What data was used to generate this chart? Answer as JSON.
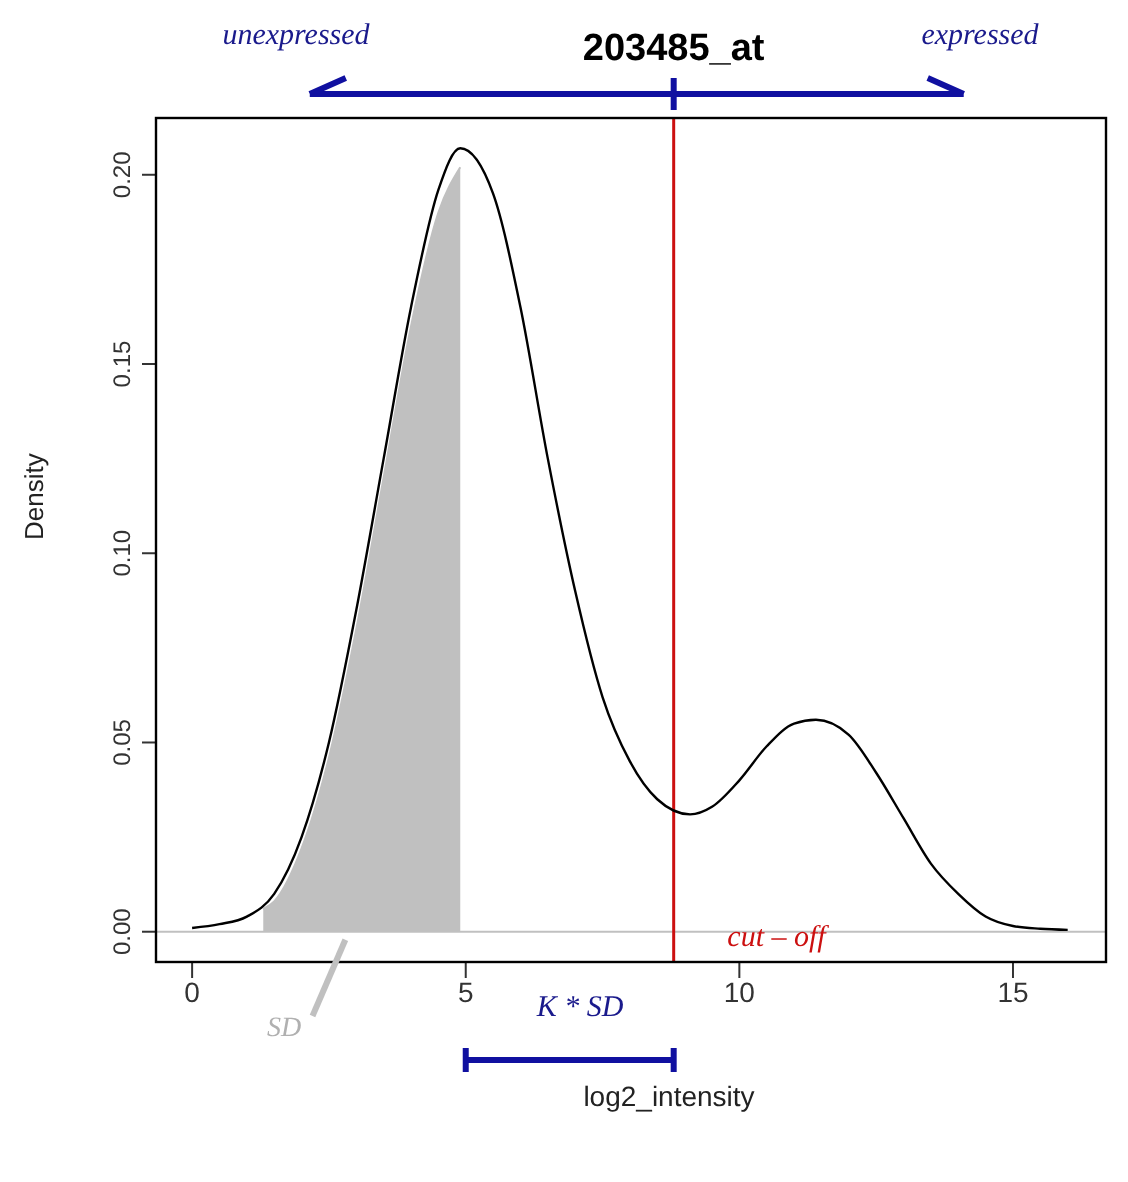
{
  "chart_data": {
    "type": "line",
    "title": "203485_at",
    "xlabel": "log2_intensity",
    "ylabel": "Density",
    "xlim": [
      -0.66,
      16.7
    ],
    "ylim": [
      -0.008,
      0.215
    ],
    "xticks": [
      0,
      5,
      10,
      15
    ],
    "yticks": [
      {
        "value": 0,
        "label": "0.00"
      },
      {
        "value": 0.05,
        "label": "0.05"
      },
      {
        "value": 0.1,
        "label": "0.10"
      },
      {
        "value": 0.15,
        "label": "0.15"
      },
      {
        "value": 0.2,
        "label": "0.20"
      }
    ],
    "marker": "none",
    "line_style": "solid",
    "series": [
      {
        "type": "area",
        "color": "#c0c0c0",
        "x": [
          1.3,
          1.5,
          2,
          2.5,
          3,
          3.5,
          4,
          4.5,
          4.9
        ],
        "values": [
          0.006,
          0.008,
          0.022,
          0.046,
          0.08,
          0.12,
          0.16,
          0.19,
          0.202
        ]
      },
      {
        "color": "#000000",
        "x": [
          0,
          0.5,
          1,
          1.5,
          2,
          2.5,
          3,
          3.5,
          4,
          4.5,
          4.9,
          5.5,
          6,
          6.5,
          7,
          7.5,
          8,
          8.5,
          9.1,
          9.5,
          10,
          10.5,
          11,
          11.4,
          12,
          12.5,
          13,
          13.5,
          14,
          14.5,
          15,
          15.5,
          16
        ],
        "values": [
          0.001,
          0.002,
          0.004,
          0.01,
          0.025,
          0.05,
          0.085,
          0.125,
          0.165,
          0.196,
          0.207,
          0.195,
          0.165,
          0.125,
          0.09,
          0.062,
          0.045,
          0.035,
          0.031,
          0.033,
          0.04,
          0.049,
          0.055,
          0.056,
          0.052,
          0.042,
          0.03,
          0.018,
          0.01,
          0.004,
          0.0015,
          0.0008,
          0.0005
        ]
      }
    ],
    "ref_lines": [
      {
        "axis": "y",
        "value": 0,
        "color": "#c0c0c0"
      },
      {
        "axis": "x",
        "value": 8.8,
        "label": "cut – off",
        "color": "#cc1010"
      }
    ],
    "annotations": [
      "unexpressed",
      "expressed",
      "SD",
      "K * SD"
    ]
  }
}
